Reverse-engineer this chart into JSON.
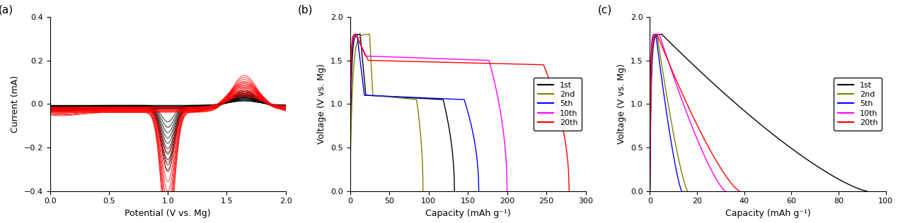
{
  "panel_a": {
    "label": "(a)",
    "xlabel": "Potential (V vs. Mg)",
    "ylabel": "Current (mA)",
    "xlim": [
      0.0,
      2.0
    ],
    "ylim": [
      -0.4,
      0.4
    ],
    "xticks": [
      0.0,
      0.5,
      1.0,
      1.5,
      2.0
    ],
    "yticks": [
      -0.4,
      -0.2,
      0.0,
      0.2,
      0.4
    ],
    "n_black": 10,
    "n_red": 10
  },
  "panel_b": {
    "label": "(b)",
    "xlabel": "Capacity (mAh g⁻¹)",
    "ylabel": "Voltage (V vs. Mg)",
    "xlim": [
      0,
      300
    ],
    "ylim": [
      0.0,
      2.0
    ],
    "xticks": [
      0,
      50,
      100,
      150,
      200,
      250,
      300
    ],
    "yticks": [
      0.0,
      0.5,
      1.0,
      1.5,
      2.0
    ],
    "legend_labels": [
      "1st",
      "2nd",
      "5th",
      "10th",
      "20th"
    ],
    "legend_colors": [
      "#000000",
      "#808000",
      "#0000ff",
      "#ff00ff",
      "#ff0000"
    ],
    "cycles": [
      {
        "color": "#000000",
        "chg_end": 13,
        "dchg_end": 120,
        "v_chg_max": 1.8,
        "v_plateau": 1.1,
        "chg_v0": 0.0
      },
      {
        "color": "#808000",
        "chg_end": 25,
        "dchg_end": 68,
        "v_chg_max": 1.8,
        "v_plateau": 1.1,
        "chg_v0": 0.05
      },
      {
        "color": "#0000ff",
        "chg_end": 9,
        "dchg_end": 155,
        "v_chg_max": 1.8,
        "v_plateau": 1.1,
        "chg_v0": 0.0
      },
      {
        "color": "#ff00ff",
        "chg_end": 8,
        "dchg_end": 192,
        "v_chg_max": 1.8,
        "v_plateau": 1.55,
        "chg_v0": 0.04
      },
      {
        "color": "#ff0000",
        "chg_end": 7,
        "dchg_end": 272,
        "v_chg_max": 1.8,
        "v_plateau": 1.5,
        "chg_v0": 0.04
      }
    ]
  },
  "panel_c": {
    "label": "(c)",
    "xlabel": "Capacity (mAh g⁻¹)",
    "ylabel": "Voltage (V vs. Mg)",
    "xlim": [
      0,
      100
    ],
    "ylim": [
      0.0,
      2.0
    ],
    "xticks": [
      0,
      20,
      40,
      60,
      80,
      100
    ],
    "yticks": [
      0.0,
      0.5,
      1.0,
      1.5,
      2.0
    ],
    "legend_labels": [
      "1st",
      "2nd",
      "5th",
      "10th",
      "20th"
    ],
    "legend_colors": [
      "#000000",
      "#808000",
      "#0000ff",
      "#ff00ff",
      "#ff0000"
    ],
    "cycles": [
      {
        "color": "#000000",
        "chg_end": 5,
        "dchg_end": 87,
        "v_chg_max": 1.8,
        "chg_v0": 0.0
      },
      {
        "color": "#808000",
        "chg_end": 3,
        "dchg_end": 13,
        "v_chg_max": 1.8,
        "chg_v0": 0.0
      },
      {
        "color": "#0000ff",
        "chg_end": 2.5,
        "dchg_end": 11,
        "v_chg_max": 1.8,
        "chg_v0": 0.0
      },
      {
        "color": "#ff00ff",
        "chg_end": 4,
        "dchg_end": 28,
        "v_chg_max": 1.8,
        "chg_v0": 0.04
      },
      {
        "color": "#ff0000",
        "chg_end": 3,
        "dchg_end": 35,
        "v_chg_max": 1.8,
        "chg_v0": 0.04
      }
    ]
  }
}
